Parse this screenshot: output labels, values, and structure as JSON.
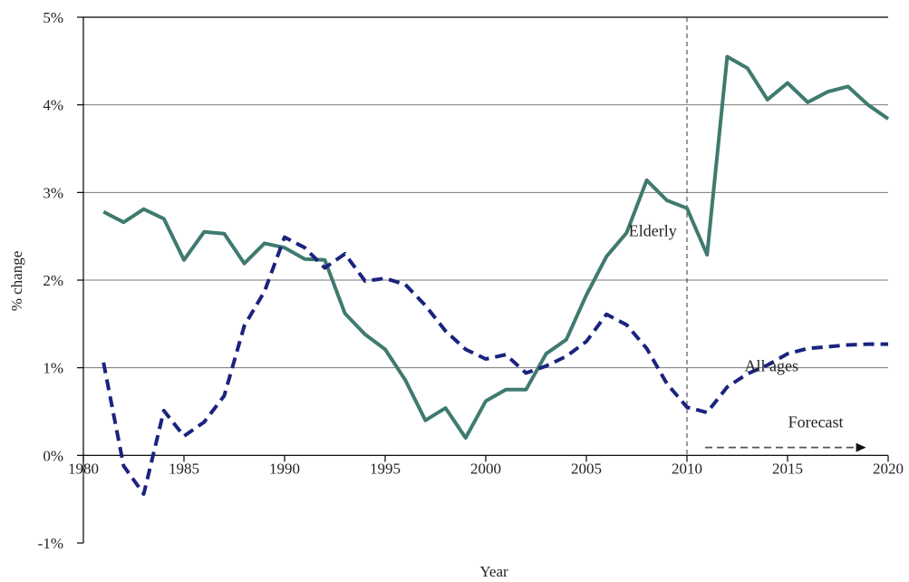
{
  "chart_data": {
    "type": "line",
    "xlabel": "Year",
    "ylabel": "% change",
    "xlim": [
      1980,
      2020
    ],
    "ylim": [
      -1,
      5
    ],
    "x_ticks": [
      "1980",
      "1985",
      "1990",
      "1995",
      "2000",
      "2005",
      "2010",
      "2015",
      "2020"
    ],
    "y_ticks": [
      "-1%",
      "0%",
      "1%",
      "2%",
      "3%",
      "4%",
      "5%"
    ],
    "grid": "horizontal",
    "colors": {
      "elderly": "#3f7a6f",
      "all_ages": "#1a237e",
      "axis": "#000000",
      "grid": "#7a7a7a"
    },
    "forecast_start": 2010,
    "series": [
      {
        "name": "Elderly",
        "style": "solid",
        "x": [
          1981,
          1982,
          1983,
          1984,
          1985,
          1986,
          1987,
          1988,
          1989,
          1990,
          1991,
          1992,
          1993,
          1994,
          1995,
          1996,
          1997,
          1998,
          1999,
          2000,
          2001,
          2002,
          2003,
          2004,
          2005,
          2006,
          2007,
          2008,
          2009,
          2010,
          2011,
          2012,
          2013,
          2014,
          2015,
          2016,
          2017,
          2018,
          2019,
          2020
        ],
        "values": [
          2.78,
          2.66,
          2.81,
          2.7,
          2.23,
          2.55,
          2.53,
          2.19,
          2.42,
          2.37,
          2.24,
          2.23,
          1.62,
          1.38,
          1.21,
          0.86,
          0.4,
          0.54,
          0.2,
          0.62,
          0.75,
          0.75,
          1.16,
          1.32,
          1.83,
          2.27,
          2.54,
          3.14,
          2.91,
          2.82,
          2.29,
          4.55,
          4.42,
          4.06,
          4.25,
          4.03,
          4.15,
          4.21,
          4.0,
          3.84
        ]
      },
      {
        "name": "All ages",
        "style": "dashed",
        "x": [
          1981,
          1982,
          1983,
          1984,
          1985,
          1986,
          1987,
          1988,
          1989,
          1990,
          1991,
          1992,
          1993,
          1994,
          1995,
          1996,
          1997,
          1998,
          1999,
          2000,
          2001,
          2002,
          2003,
          2004,
          2005,
          2006,
          2007,
          2008,
          2009,
          2010,
          2011,
          2012,
          2013,
          2014,
          2015,
          2016,
          2017,
          2018,
          2019,
          2020
        ],
        "values": [
          1.06,
          -0.12,
          -0.44,
          0.51,
          0.22,
          0.38,
          0.68,
          1.48,
          1.87,
          2.49,
          2.37,
          2.14,
          2.3,
          1.99,
          2.02,
          1.95,
          1.71,
          1.42,
          1.21,
          1.1,
          1.15,
          0.94,
          1.02,
          1.13,
          1.3,
          1.61,
          1.49,
          1.22,
          0.82,
          0.55,
          0.49,
          0.78,
          0.93,
          1.03,
          1.16,
          1.22,
          1.24,
          1.26,
          1.27,
          1.27
        ]
      }
    ],
    "annotations": [
      {
        "text": "Elderly",
        "x": 2008.3,
        "y": 2.5
      },
      {
        "text": "All ages",
        "x": 2014.2,
        "y": 0.96
      },
      {
        "text": "Forecast",
        "x": 2016.4,
        "y": 0.32
      }
    ]
  }
}
